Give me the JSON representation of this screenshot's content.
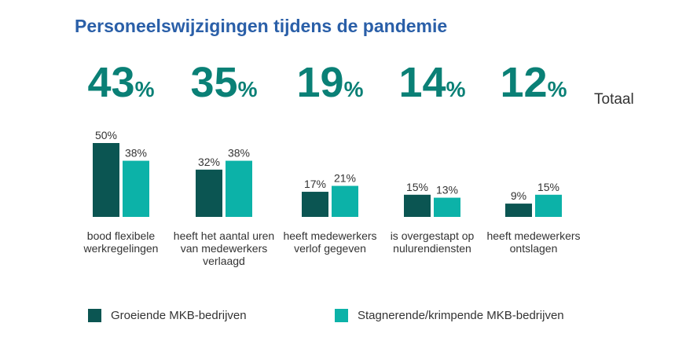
{
  "colors": {
    "title": "#2a5fa8",
    "totals": "#0a8076",
    "growing": "#0b5552",
    "stagnating": "#0cb2a8",
    "text": "#333333"
  },
  "chart_data": {
    "type": "bar",
    "title": "Personeelswijzigingen tijdens de pandemie",
    "totals_label": "Totaal",
    "totals": [
      "43",
      "35",
      "19",
      "14",
      "12"
    ],
    "totals_unit": "%",
    "categories": [
      "bood flexibele werkregelingen",
      "heeft het aantal uren van medewerkers verlaagd",
      "heeft medewerkers verlof gegeven",
      "is overgestapt op nulurendiensten",
      "heeft medewerkers ontslagen"
    ],
    "series": [
      {
        "name": "Groeiende MKB-bedrijven",
        "values": [
          50,
          32,
          17,
          15,
          9
        ]
      },
      {
        "name": "Stagnerende/krimpende MKB-bedrijven",
        "values": [
          38,
          38,
          21,
          13,
          15
        ]
      }
    ],
    "value_suffix": "%",
    "legend_position": "bottom",
    "ylim": [
      0,
      50
    ]
  }
}
